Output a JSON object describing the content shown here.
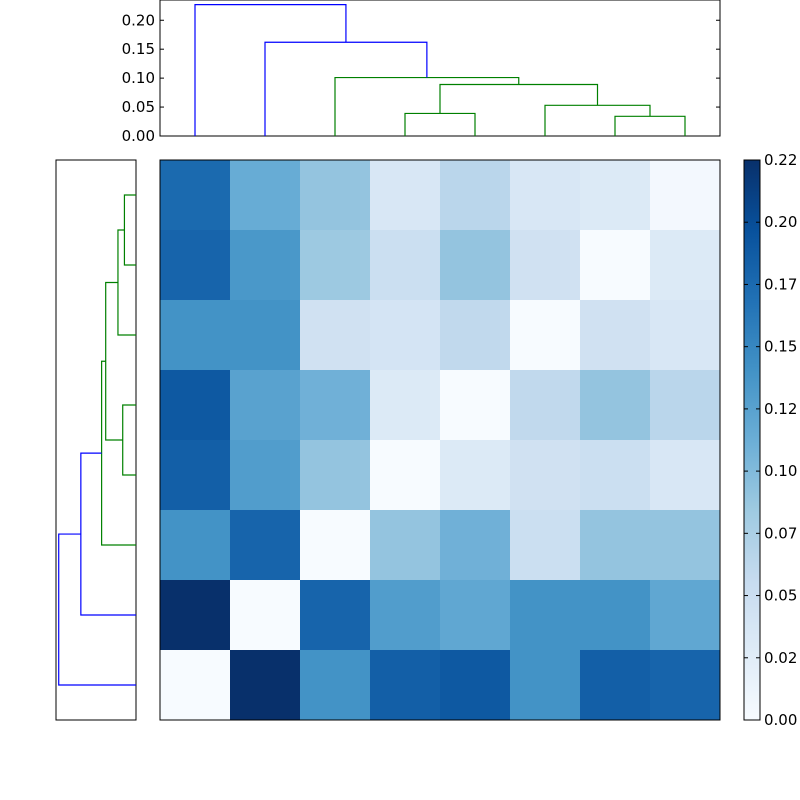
{
  "chart_data": {
    "type": "heatmap",
    "title": "",
    "colormap": "Blues",
    "colormap_stops": [
      "#f7fbff",
      "#deebf7",
      "#c6dbef",
      "#9ecae1",
      "#6baed6",
      "#4292c6",
      "#2171b5",
      "#08519c",
      "#08306b"
    ],
    "heatmap": {
      "n_rows": 8,
      "n_cols": 8,
      "vmin": 0.0,
      "vmax": 0.225,
      "values": [
        [
          0.175,
          0.115,
          0.09,
          0.035,
          0.065,
          0.035,
          0.03,
          0.005
        ],
        [
          0.18,
          0.135,
          0.085,
          0.05,
          0.09,
          0.045,
          0.0,
          0.03
        ],
        [
          0.14,
          0.14,
          0.045,
          0.04,
          0.06,
          0.0,
          0.045,
          0.035
        ],
        [
          0.19,
          0.125,
          0.11,
          0.03,
          0.0,
          0.06,
          0.09,
          0.065
        ],
        [
          0.185,
          0.13,
          0.09,
          0.0,
          0.03,
          0.045,
          0.05,
          0.035
        ],
        [
          0.14,
          0.18,
          0.0,
          0.09,
          0.11,
          0.05,
          0.09,
          0.09
        ],
        [
          0.225,
          0.0,
          0.18,
          0.13,
          0.12,
          0.14,
          0.14,
          0.12
        ],
        [
          0.0,
          0.225,
          0.14,
          0.185,
          0.19,
          0.14,
          0.185,
          0.18
        ]
      ]
    },
    "colorbar": {
      "ticks": [
        0.0,
        0.025,
        0.05,
        0.075,
        0.1,
        0.125,
        0.15,
        0.175,
        0.2,
        0.225
      ],
      "tick_labels": [
        "0.00",
        "0.02",
        "0.05",
        "0.07",
        "0.10",
        "0.12",
        "0.15",
        "0.17",
        "0.20",
        "0.22"
      ]
    },
    "top_dendrogram": {
      "ylim": [
        0.0,
        0.235
      ],
      "ticks": [
        0.0,
        0.05,
        0.1,
        0.15,
        0.2
      ],
      "tick_labels": [
        "0.00",
        "0.05",
        "0.10",
        "0.15",
        "0.20"
      ],
      "links": [
        {
          "left": 6.0,
          "left_height": 0.0,
          "right": 7.0,
          "right_height": 0.0,
          "height": 0.034,
          "color": "#008000"
        },
        {
          "left": 5.0,
          "left_height": 0.0,
          "right": 6.5,
          "right_height": 0.034,
          "height": 0.053,
          "color": "#008000"
        },
        {
          "left": 3.0,
          "left_height": 0.0,
          "right": 4.0,
          "right_height": 0.0,
          "height": 0.039,
          "color": "#008000"
        },
        {
          "left": 3.5,
          "left_height": 0.039,
          "right": 5.75,
          "right_height": 0.053,
          "height": 0.089,
          "color": "#008000"
        },
        {
          "left": 2.0,
          "left_height": 0.0,
          "right": 4.625,
          "right_height": 0.089,
          "height": 0.101,
          "color": "#008000"
        },
        {
          "left": 1.0,
          "left_height": 0.0,
          "right": 3.3125,
          "right_height": 0.101,
          "height": 0.162,
          "color": "#0000ff"
        },
        {
          "left": 0.0,
          "left_height": 0.0,
          "right": 2.15625,
          "right_height": 0.162,
          "height": 0.227,
          "color": "#0000ff"
        }
      ]
    },
    "left_dendrogram": {
      "xlim": [
        0.0,
        0.235
      ],
      "links": [
        {
          "top": 0.5,
          "top_height": 0.0,
          "bottom": 1.5,
          "bottom_height": 0.0,
          "height": 0.034,
          "color": "#008000"
        },
        {
          "top": 1.0,
          "top_height": 0.034,
          "bottom": 2.5,
          "bottom_height": 0.0,
          "height": 0.053,
          "color": "#008000"
        },
        {
          "top": 3.5,
          "top_height": 0.0,
          "bottom": 4.5,
          "bottom_height": 0.0,
          "height": 0.039,
          "color": "#008000"
        },
        {
          "top": 1.75,
          "top_height": 0.053,
          "bottom": 4.0,
          "bottom_height": 0.039,
          "height": 0.089,
          "color": "#008000"
        },
        {
          "top": 2.875,
          "top_height": 0.089,
          "bottom": 5.5,
          "bottom_height": 0.0,
          "height": 0.101,
          "color": "#008000"
        },
        {
          "top": 4.1875,
          "top_height": 0.101,
          "bottom": 6.5,
          "bottom_height": 0.0,
          "height": 0.162,
          "color": "#0000ff"
        },
        {
          "top": 5.34375,
          "top_height": 0.162,
          "bottom": 7.5,
          "bottom_height": 0.0,
          "height": 0.227,
          "color": "#0000ff"
        }
      ]
    }
  }
}
